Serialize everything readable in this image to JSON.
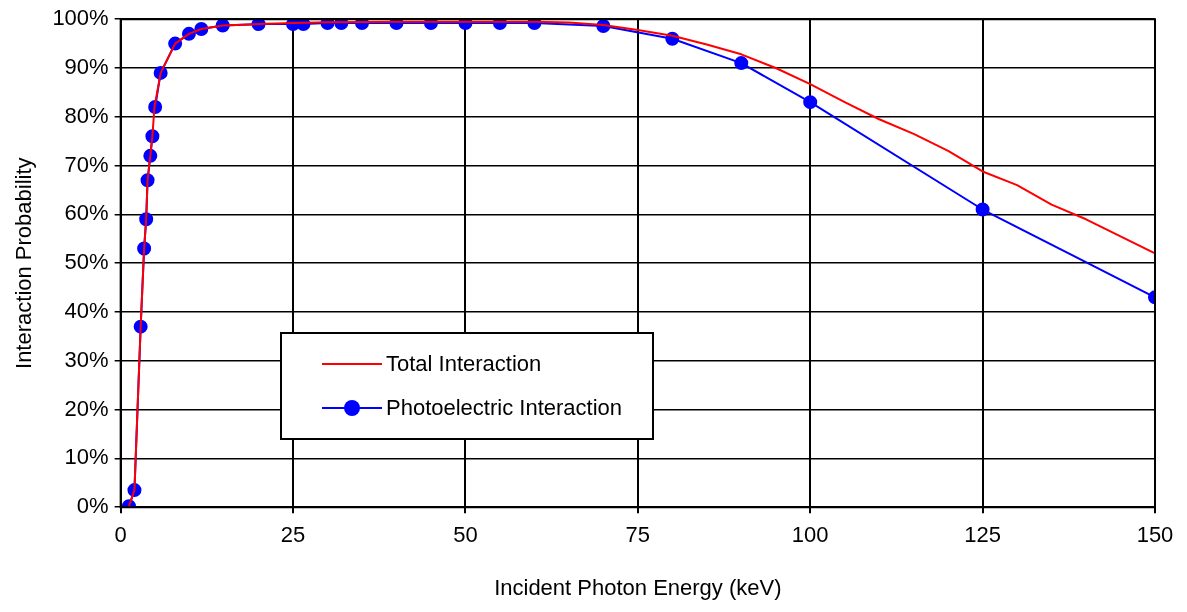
{
  "chart_data": {
    "type": "line",
    "xlabel": "Incident Photon Energy (keV)",
    "ylabel": "Interaction Probability",
    "xlim": [
      0,
      150
    ],
    "xticks": [
      0,
      25,
      50,
      75,
      100,
      125,
      150
    ],
    "ylim": [
      0,
      100
    ],
    "yticks": [
      {
        "value": 0,
        "label": "0%"
      },
      {
        "value": 10,
        "label": "10%"
      },
      {
        "value": 20,
        "label": "20%"
      },
      {
        "value": 30,
        "label": "30%"
      },
      {
        "value": 40,
        "label": "40%"
      },
      {
        "value": 50,
        "label": "50%"
      },
      {
        "value": 60,
        "label": "60%"
      },
      {
        "value": 70,
        "label": "70%"
      },
      {
        "value": 80,
        "label": "80%"
      },
      {
        "value": 90,
        "label": "90%"
      },
      {
        "value": 100,
        "label": "100%"
      }
    ],
    "grid": true,
    "legend": "bottom left",
    "series": [
      {
        "name": "Total Interaction",
        "color": "#ff0000",
        "marker": "none",
        "x": [
          1.2,
          2,
          2.9,
          3.4,
          3.7,
          3.9,
          4.3,
          4.6,
          4.9,
          5.8,
          7.9,
          9.9,
          11.7,
          14.8,
          20,
          25,
          30,
          40,
          50,
          60,
          65,
          70,
          75,
          80,
          85,
          90,
          95,
          100,
          105,
          110,
          115,
          120,
          125,
          130,
          135,
          140,
          145,
          150
        ],
        "values": [
          0.2,
          3.5,
          37,
          53,
          59,
          67,
          72,
          76,
          82,
          89,
          95,
          97,
          98,
          98.7,
          99,
          99.2,
          99.4,
          99.5,
          99.5,
          99.5,
          99.3,
          98.8,
          97.8,
          96.6,
          94.8,
          92.8,
          90,
          86.7,
          83,
          79.5,
          76.5,
          73,
          68.8,
          66,
          62,
          59,
          55.5,
          52
        ]
      },
      {
        "name": "Photoelectric Interaction",
        "color": "#0000ff",
        "marker": "circle",
        "x": [
          1.2,
          2,
          2.9,
          3.4,
          3.7,
          3.9,
          4.3,
          4.6,
          4.9,
          5,
          5.8,
          7.9,
          9.9,
          11.7,
          14.8,
          20,
          25,
          26.5,
          30,
          32,
          35,
          40,
          45,
          50,
          55,
          60,
          70,
          80,
          90,
          100,
          125,
          150
        ],
        "values": [
          0.2,
          3.5,
          37,
          53,
          59,
          67,
          72,
          76,
          null,
          82,
          89,
          95,
          97,
          98,
          98.7,
          99,
          99,
          99,
          99.2,
          99.2,
          99.2,
          99.2,
          99.2,
          99.2,
          99.2,
          99.2,
          98.6,
          96,
          91,
          83,
          61,
          43
        ]
      }
    ]
  }
}
